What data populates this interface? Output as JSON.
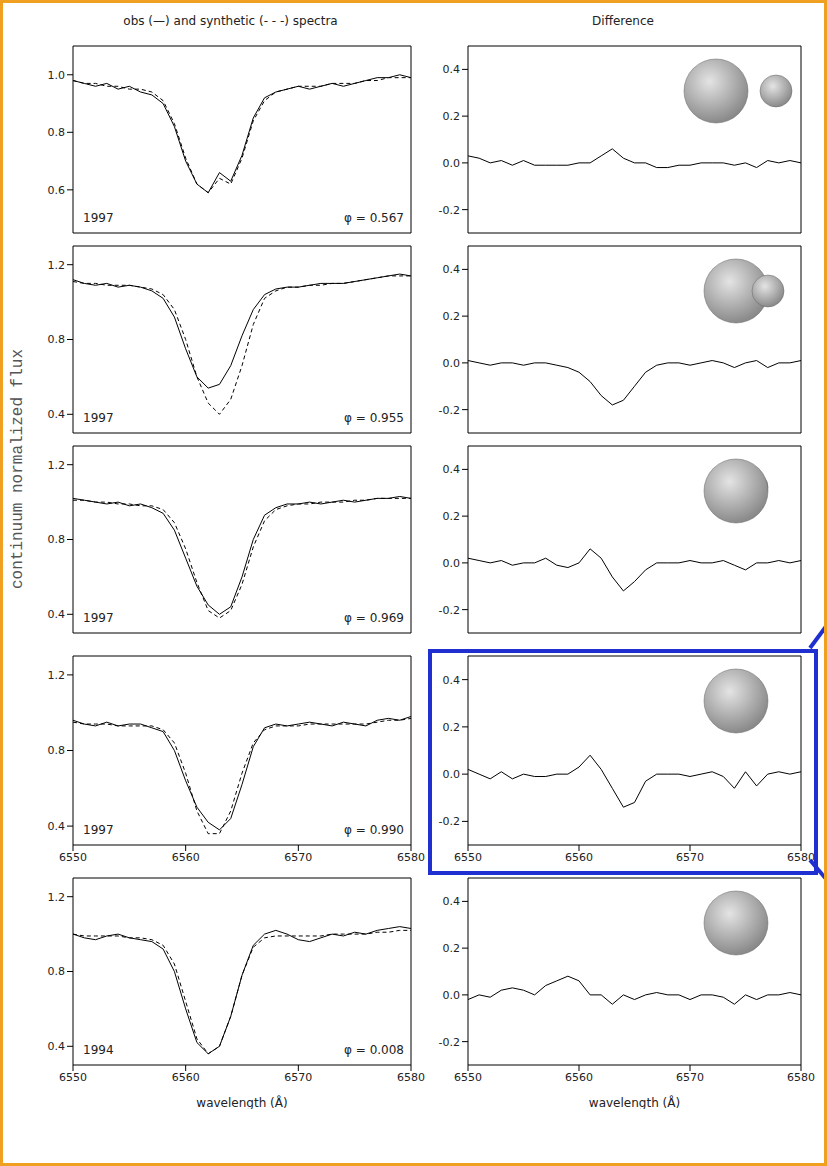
{
  "figure": {
    "y_label": "continuum normalized flux"
  },
  "chart_data": [
    {
      "type": "line",
      "title": "obs (—) and synthetic (- - -) spectra",
      "annotations": [
        "1997",
        "φ = 0.567"
      ],
      "tick_labels": "y",
      "x": [
        6550,
        6551,
        6552,
        6553,
        6554,
        6555,
        6556,
        6557,
        6558,
        6559,
        6560,
        6561,
        6562,
        6563,
        6564,
        6565,
        6566,
        6567,
        6568,
        6569,
        6570,
        6571,
        6572,
        6573,
        6574,
        6575,
        6576,
        6577,
        6578,
        6579,
        6580
      ],
      "xlim": [
        6550,
        6580
      ],
      "xticks": [
        6550,
        6560,
        6570,
        6580
      ],
      "ylim": [
        0.45,
        1.1
      ],
      "yticks": [
        0.6,
        0.8,
        {
          "value": 1,
          "label": "1.0"
        }
      ],
      "series": [
        {
          "color": "#000000",
          "line_style": "solid",
          "values": [
            0.98,
            0.97,
            0.96,
            0.97,
            0.95,
            0.96,
            0.94,
            0.93,
            0.9,
            0.82,
            0.7,
            0.62,
            0.59,
            0.66,
            0.63,
            0.72,
            0.85,
            0.92,
            0.94,
            0.95,
            0.96,
            0.95,
            0.96,
            0.97,
            0.96,
            0.97,
            0.98,
            0.99,
            0.99,
            1.0,
            0.99
          ]
        },
        {
          "color": "#000000",
          "line_style": "dashed",
          "values": [
            0.98,
            0.97,
            0.97,
            0.96,
            0.96,
            0.95,
            0.95,
            0.94,
            0.91,
            0.83,
            0.71,
            0.62,
            0.59,
            0.64,
            0.62,
            0.71,
            0.84,
            0.91,
            0.94,
            0.95,
            0.96,
            0.96,
            0.96,
            0.97,
            0.97,
            0.97,
            0.98,
            0.98,
            0.99,
            0.99,
            0.99
          ]
        }
      ]
    },
    {
      "type": "line",
      "annotations": [
        "1997",
        "φ = 0.955"
      ],
      "tick_labels": "y",
      "x": [
        6550,
        6551,
        6552,
        6553,
        6554,
        6555,
        6556,
        6557,
        6558,
        6559,
        6560,
        6561,
        6562,
        6563,
        6564,
        6565,
        6566,
        6567,
        6568,
        6569,
        6570,
        6571,
        6572,
        6573,
        6574,
        6575,
        6576,
        6577,
        6578,
        6579,
        6580
      ],
      "xlim": [
        6550,
        6580
      ],
      "xticks": [
        6550,
        6560,
        6570,
        6580
      ],
      "ylim": [
        0.3,
        1.3
      ],
      "yticks": [
        0.4,
        0.8,
        1.2
      ],
      "series": [
        {
          "color": "#000000",
          "line_style": "solid",
          "values": [
            1.12,
            1.1,
            1.09,
            1.1,
            1.08,
            1.09,
            1.08,
            1.06,
            1.02,
            0.92,
            0.75,
            0.6,
            0.54,
            0.56,
            0.66,
            0.82,
            0.96,
            1.04,
            1.07,
            1.08,
            1.08,
            1.09,
            1.1,
            1.1,
            1.1,
            1.11,
            1.12,
            1.13,
            1.14,
            1.15,
            1.14
          ]
        },
        {
          "color": "#000000",
          "line_style": "dashed",
          "values": [
            1.11,
            1.1,
            1.1,
            1.09,
            1.09,
            1.09,
            1.08,
            1.07,
            1.04,
            0.96,
            0.8,
            0.6,
            0.46,
            0.4,
            0.48,
            0.66,
            0.88,
            1.02,
            1.06,
            1.08,
            1.08,
            1.09,
            1.09,
            1.1,
            1.1,
            1.11,
            1.12,
            1.13,
            1.14,
            1.14,
            1.14
          ]
        }
      ]
    },
    {
      "type": "line",
      "annotations": [
        "1997",
        "φ = 0.969"
      ],
      "tick_labels": "y",
      "x": [
        6550,
        6551,
        6552,
        6553,
        6554,
        6555,
        6556,
        6557,
        6558,
        6559,
        6560,
        6561,
        6562,
        6563,
        6564,
        6565,
        6566,
        6567,
        6568,
        6569,
        6570,
        6571,
        6572,
        6573,
        6574,
        6575,
        6576,
        6577,
        6578,
        6579,
        6580
      ],
      "xlim": [
        6550,
        6580
      ],
      "xticks": [
        6550,
        6560,
        6570,
        6580
      ],
      "ylim": [
        0.3,
        1.3
      ],
      "yticks": [
        0.4,
        0.8,
        1.2
      ],
      "series": [
        {
          "color": "#000000",
          "line_style": "solid",
          "values": [
            1.02,
            1.01,
            1.0,
            0.99,
            1.0,
            0.98,
            0.99,
            0.97,
            0.94,
            0.85,
            0.7,
            0.55,
            0.45,
            0.4,
            0.44,
            0.6,
            0.8,
            0.93,
            0.97,
            0.99,
            0.99,
            1.0,
            0.99,
            1.0,
            1.01,
            1.0,
            1.01,
            1.02,
            1.02,
            1.03,
            1.02
          ]
        },
        {
          "color": "#000000",
          "line_style": "dashed",
          "values": [
            1.01,
            1.01,
            1.0,
            1.0,
            0.99,
            0.99,
            0.98,
            0.98,
            0.96,
            0.89,
            0.75,
            0.57,
            0.42,
            0.38,
            0.42,
            0.56,
            0.76,
            0.9,
            0.96,
            0.98,
            0.99,
            0.99,
            1.0,
            1.0,
            1.0,
            1.01,
            1.01,
            1.02,
            1.02,
            1.02,
            1.02
          ]
        }
      ]
    },
    {
      "type": "line",
      "annotations": [
        "1997",
        "φ = 0.990"
      ],
      "x": [
        6550,
        6551,
        6552,
        6553,
        6554,
        6555,
        6556,
        6557,
        6558,
        6559,
        6560,
        6561,
        6562,
        6563,
        6564,
        6565,
        6566,
        6567,
        6568,
        6569,
        6570,
        6571,
        6572,
        6573,
        6574,
        6575,
        6576,
        6577,
        6578,
        6579,
        6580
      ],
      "xlim": [
        6550,
        6580
      ],
      "xticks": [
        6550,
        6560,
        6570,
        6580
      ],
      "ylim": [
        0.3,
        1.3
      ],
      "yticks": [
        0.4,
        0.8,
        1.2
      ],
      "series": [
        {
          "color": "#000000",
          "line_style": "solid",
          "values": [
            0.96,
            0.94,
            0.93,
            0.95,
            0.93,
            0.94,
            0.94,
            0.92,
            0.9,
            0.8,
            0.64,
            0.5,
            0.42,
            0.38,
            0.44,
            0.62,
            0.82,
            0.92,
            0.94,
            0.93,
            0.94,
            0.95,
            0.94,
            0.93,
            0.95,
            0.94,
            0.93,
            0.96,
            0.97,
            0.96,
            0.98
          ]
        },
        {
          "color": "#000000",
          "line_style": "dashed",
          "values": [
            0.95,
            0.94,
            0.94,
            0.94,
            0.93,
            0.93,
            0.93,
            0.93,
            0.91,
            0.84,
            0.68,
            0.48,
            0.36,
            0.36,
            0.48,
            0.68,
            0.84,
            0.91,
            0.93,
            0.93,
            0.93,
            0.94,
            0.94,
            0.94,
            0.94,
            0.94,
            0.94,
            0.95,
            0.96,
            0.96,
            0.97
          ]
        }
      ]
    },
    {
      "type": "line",
      "annotations": [
        "1994",
        "φ = 0.008"
      ],
      "x_label": "wavelength (Å)",
      "x": [
        6550,
        6551,
        6552,
        6553,
        6554,
        6555,
        6556,
        6557,
        6558,
        6559,
        6560,
        6561,
        6562,
        6563,
        6564,
        6565,
        6566,
        6567,
        6568,
        6569,
        6570,
        6571,
        6572,
        6573,
        6574,
        6575,
        6576,
        6577,
        6578,
        6579,
        6580
      ],
      "xlim": [
        6550,
        6580
      ],
      "xticks": [
        6550,
        6560,
        6570,
        6580
      ],
      "ylim": [
        0.3,
        1.3
      ],
      "yticks": [
        0.4,
        0.8,
        1.2
      ],
      "series": [
        {
          "color": "#000000",
          "line_style": "solid",
          "values": [
            1.0,
            0.98,
            0.97,
            0.99,
            1.0,
            0.98,
            0.97,
            0.96,
            0.92,
            0.8,
            0.6,
            0.42,
            0.36,
            0.4,
            0.56,
            0.78,
            0.94,
            1.0,
            1.02,
            1.0,
            0.97,
            0.96,
            0.98,
            1.0,
            0.99,
            1.01,
            1.0,
            1.02,
            1.03,
            1.04,
            1.03
          ]
        },
        {
          "color": "#000000",
          "line_style": "dashed",
          "values": [
            1.0,
            0.99,
            0.99,
            0.99,
            0.99,
            0.98,
            0.98,
            0.97,
            0.94,
            0.84,
            0.64,
            0.44,
            0.36,
            0.4,
            0.56,
            0.78,
            0.93,
            0.98,
            0.99,
            0.99,
            0.99,
            0.99,
            0.99,
            1.0,
            1.0,
            1.0,
            1.0,
            1.01,
            1.01,
            1.02,
            1.02
          ]
        }
      ]
    },
    {
      "type": "line",
      "title": "Difference",
      "tick_labels": "y",
      "x": [
        6550,
        6551,
        6552,
        6553,
        6554,
        6555,
        6556,
        6557,
        6558,
        6559,
        6560,
        6561,
        6562,
        6563,
        6564,
        6565,
        6566,
        6567,
        6568,
        6569,
        6570,
        6571,
        6572,
        6573,
        6574,
        6575,
        6576,
        6577,
        6578,
        6579,
        6580
      ],
      "xlim": [
        6550,
        6580
      ],
      "xticks": [
        6550,
        6560,
        6570,
        6580
      ],
      "ylim": [
        -0.3,
        0.5
      ],
      "yticks": [
        -0.2,
        {
          "value": 0,
          "label": "0.0"
        },
        0.2,
        0.4
      ],
      "series": [
        {
          "color": "#000000",
          "line_style": "solid",
          "values": [
            0.03,
            0.02,
            0.0,
            0.01,
            -0.01,
            0.01,
            -0.01,
            -0.01,
            -0.01,
            -0.01,
            0.0,
            0.0,
            0.03,
            0.06,
            0.02,
            0.0,
            0.0,
            -0.02,
            -0.02,
            -0.01,
            -0.01,
            0.0,
            0.0,
            0.0,
            -0.01,
            0.0,
            -0.02,
            0.01,
            0.0,
            0.01,
            0.0
          ]
        }
      ]
    },
    {
      "type": "line",
      "tick_labels": "y",
      "x": [
        6550,
        6551,
        6552,
        6553,
        6554,
        6555,
        6556,
        6557,
        6558,
        6559,
        6560,
        6561,
        6562,
        6563,
        6564,
        6565,
        6566,
        6567,
        6568,
        6569,
        6570,
        6571,
        6572,
        6573,
        6574,
        6575,
        6576,
        6577,
        6578,
        6579,
        6580
      ],
      "xlim": [
        6550,
        6580
      ],
      "xticks": [
        6550,
        6560,
        6570,
        6580
      ],
      "ylim": [
        -0.3,
        0.5
      ],
      "yticks": [
        -0.2,
        {
          "value": 0,
          "label": "0.0"
        },
        0.2,
        0.4
      ],
      "series": [
        {
          "color": "#000000",
          "line_style": "solid",
          "values": [
            0.01,
            0.0,
            -0.01,
            0.0,
            0.0,
            -0.01,
            0.0,
            0.0,
            -0.01,
            -0.02,
            -0.04,
            -0.08,
            -0.14,
            -0.18,
            -0.16,
            -0.1,
            -0.04,
            -0.01,
            0.0,
            0.0,
            -0.01,
            0.0,
            0.01,
            0.0,
            -0.02,
            0.0,
            0.01,
            -0.02,
            0.0,
            0.0,
            0.01
          ]
        }
      ]
    },
    {
      "type": "line",
      "tick_labels": "y",
      "x": [
        6550,
        6551,
        6552,
        6553,
        6554,
        6555,
        6556,
        6557,
        6558,
        6559,
        6560,
        6561,
        6562,
        6563,
        6564,
        6565,
        6566,
        6567,
        6568,
        6569,
        6570,
        6571,
        6572,
        6573,
        6574,
        6575,
        6576,
        6577,
        6578,
        6579,
        6580
      ],
      "xlim": [
        6550,
        6580
      ],
      "xticks": [
        6550,
        6560,
        6570,
        6580
      ],
      "ylim": [
        -0.3,
        0.5
      ],
      "yticks": [
        -0.2,
        {
          "value": 0,
          "label": "0.0"
        },
        0.2,
        0.4
      ],
      "series": [
        {
          "color": "#000000",
          "line_style": "solid",
          "values": [
            0.02,
            0.01,
            0.0,
            0.01,
            -0.01,
            0.0,
            0.0,
            0.02,
            -0.01,
            -0.02,
            0.0,
            0.06,
            0.02,
            -0.06,
            -0.12,
            -0.08,
            -0.03,
            0.0,
            0.0,
            0.0,
            0.01,
            0.0,
            0.0,
            0.01,
            -0.01,
            -0.03,
            0.0,
            0.0,
            0.01,
            0.0,
            0.01
          ]
        }
      ]
    },
    {
      "type": "line",
      "x": [
        6550,
        6551,
        6552,
        6553,
        6554,
        6555,
        6556,
        6557,
        6558,
        6559,
        6560,
        6561,
        6562,
        6563,
        6564,
        6565,
        6566,
        6567,
        6568,
        6569,
        6570,
        6571,
        6572,
        6573,
        6574,
        6575,
        6576,
        6577,
        6578,
        6579,
        6580
      ],
      "xlim": [
        6550,
        6580
      ],
      "xticks": [
        6550,
        6560,
        6570,
        6580
      ],
      "ylim": [
        -0.3,
        0.5
      ],
      "yticks": [
        -0.2,
        {
          "value": 0,
          "label": "0.0"
        },
        0.2,
        0.4
      ],
      "series": [
        {
          "color": "#000000",
          "line_style": "solid",
          "values": [
            0.02,
            0.0,
            -0.02,
            0.01,
            -0.02,
            0.0,
            -0.01,
            -0.01,
            0.0,
            0.0,
            0.03,
            0.08,
            0.02,
            -0.06,
            -0.14,
            -0.12,
            -0.03,
            0.0,
            0.0,
            0.0,
            -0.01,
            0.0,
            0.01,
            -0.01,
            -0.06,
            0.01,
            -0.05,
            0.0,
            0.01,
            0.0,
            0.01
          ]
        }
      ]
    },
    {
      "type": "line",
      "x_label": "wavelength (Å)",
      "x": [
        6550,
        6551,
        6552,
        6553,
        6554,
        6555,
        6556,
        6557,
        6558,
        6559,
        6560,
        6561,
        6562,
        6563,
        6564,
        6565,
        6566,
        6567,
        6568,
        6569,
        6570,
        6571,
        6572,
        6573,
        6574,
        6575,
        6576,
        6577,
        6578,
        6579,
        6580
      ],
      "xlim": [
        6550,
        6580
      ],
      "xticks": [
        6550,
        6560,
        6570,
        6580
      ],
      "ylim": [
        -0.3,
        0.5
      ],
      "yticks": [
        -0.2,
        {
          "value": 0,
          "label": "0.0"
        },
        0.2,
        0.4
      ],
      "series": [
        {
          "color": "#000000",
          "line_style": "solid",
          "values": [
            -0.02,
            0.0,
            -0.01,
            0.02,
            0.03,
            0.02,
            0.0,
            0.04,
            0.06,
            0.08,
            0.06,
            0.0,
            0.0,
            -0.04,
            0.0,
            -0.02,
            0.0,
            0.01,
            0.0,
            0.0,
            -0.02,
            0.0,
            0.0,
            -0.01,
            -0.04,
            0.0,
            -0.02,
            0.0,
            0.0,
            0.01,
            0.0
          ]
        }
      ]
    }
  ]
}
